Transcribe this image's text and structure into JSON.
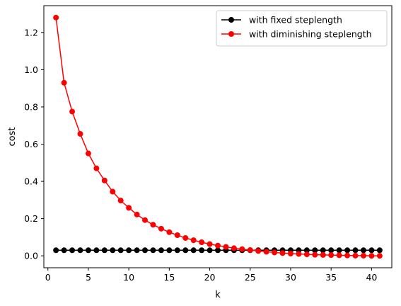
{
  "chart_data": {
    "type": "line",
    "title": "",
    "xlabel": "k",
    "ylabel": "cost",
    "xlim": [
      -0.5,
      42.5
    ],
    "ylim": [
      -0.064,
      1.344
    ],
    "xticks": [
      0,
      5,
      10,
      15,
      20,
      25,
      30,
      35,
      40
    ],
    "yticks": [
      0.0,
      0.2,
      0.4,
      0.6,
      0.8,
      1.0,
      1.2
    ],
    "xtick_labels": [
      "0",
      "5",
      "10",
      "15",
      "20",
      "25",
      "30",
      "35",
      "40"
    ],
    "ytick_labels": [
      "0.0",
      "0.2",
      "0.4",
      "0.6",
      "0.8",
      "1.0",
      "1.2"
    ],
    "legend_position": "top-right",
    "grid": false,
    "x": [
      1,
      2,
      3,
      4,
      5,
      6,
      7,
      8,
      9,
      10,
      11,
      12,
      13,
      14,
      15,
      16,
      17,
      18,
      19,
      20,
      21,
      22,
      23,
      24,
      25,
      26,
      27,
      28,
      29,
      30,
      31,
      32,
      33,
      34,
      35,
      36,
      37,
      38,
      39,
      40,
      41
    ],
    "series": [
      {
        "name": "with fixed steplength",
        "color": "#000000",
        "marker": "circle",
        "values": [
          0.03,
          0.03,
          0.03,
          0.03,
          0.03,
          0.03,
          0.03,
          0.03,
          0.03,
          0.03,
          0.03,
          0.03,
          0.03,
          0.03,
          0.03,
          0.03,
          0.03,
          0.03,
          0.03,
          0.03,
          0.03,
          0.03,
          0.03,
          0.03,
          0.03,
          0.03,
          0.03,
          0.03,
          0.03,
          0.03,
          0.03,
          0.03,
          0.03,
          0.03,
          0.03,
          0.03,
          0.03,
          0.03,
          0.03,
          0.03,
          0.03
        ]
      },
      {
        "name": "with diminishing steplength",
        "color": "#ff0000",
        "marker": "circle",
        "values": [
          1.28,
          0.93,
          0.775,
          0.655,
          0.55,
          0.47,
          0.405,
          0.345,
          0.297,
          0.258,
          0.222,
          0.192,
          0.167,
          0.146,
          0.127,
          0.111,
          0.096,
          0.084,
          0.073,
          0.063,
          0.055,
          0.048,
          0.041,
          0.036,
          0.031,
          0.026,
          0.022,
          0.018,
          0.015,
          0.012,
          0.01,
          0.008,
          0.006,
          0.005,
          0.004,
          0.003,
          0.002,
          0.001,
          0.001,
          0.0,
          0.0
        ]
      }
    ]
  }
}
